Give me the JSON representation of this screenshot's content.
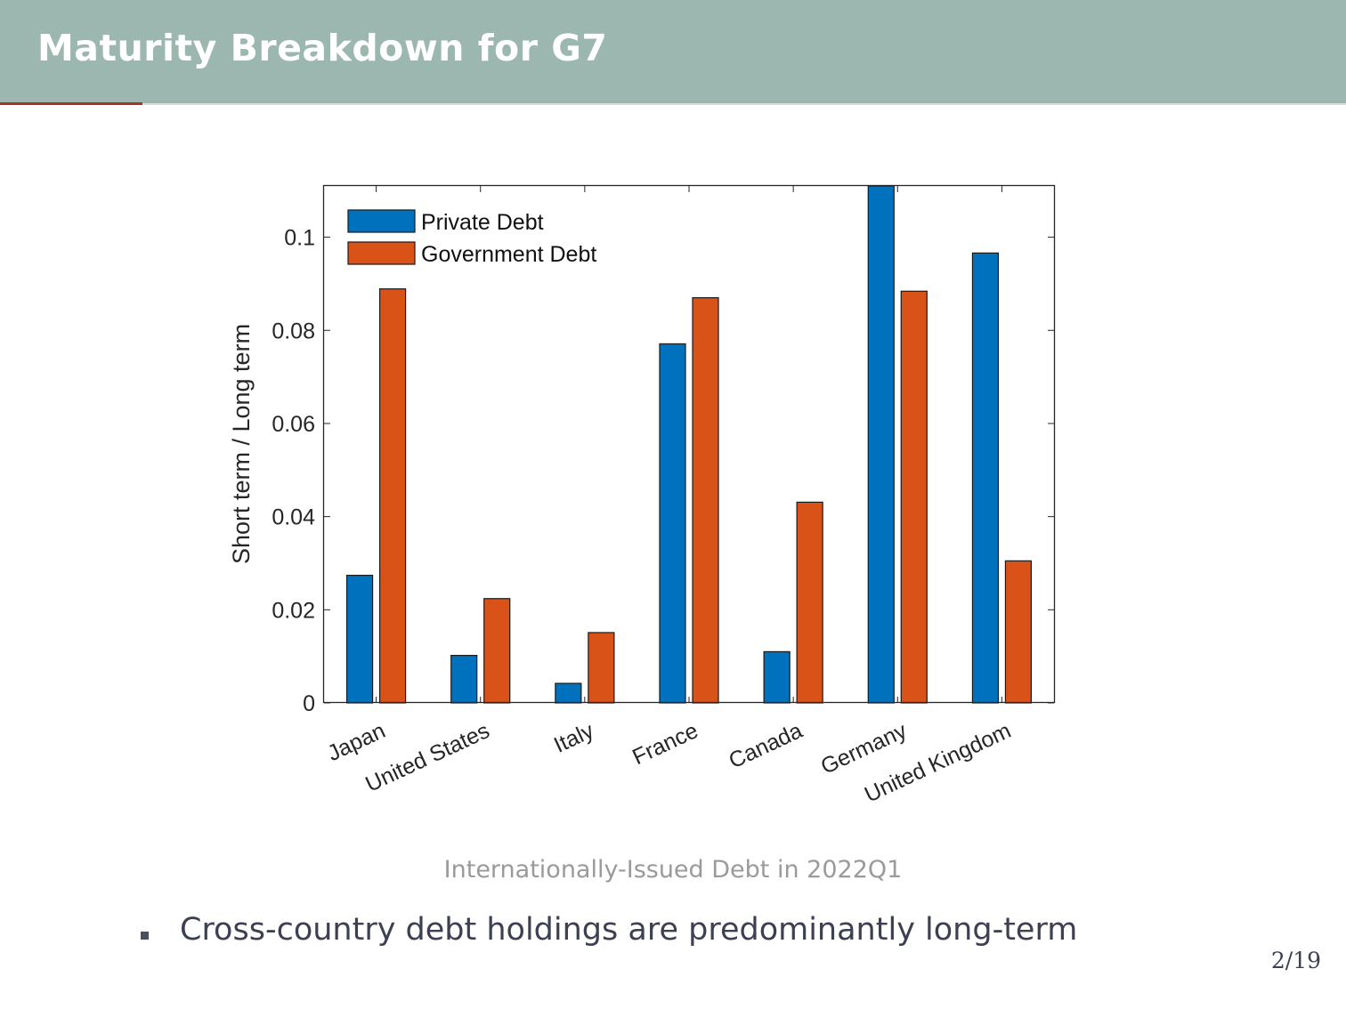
{
  "slide": {
    "title": "Maturity Breakdown for G7",
    "caption": "Internationally-Issued Debt in 2022Q1",
    "bullet": "Cross-country debt holdings are predominantly long-term",
    "page_number": "2/19"
  },
  "colors": {
    "header_bg": "#9bb7b0",
    "accent": "#a6322a",
    "private": "#0072bd",
    "government": "#d95319"
  },
  "chart_data": {
    "type": "bar",
    "title": "",
    "xlabel": "",
    "ylabel": "Short term / Long term",
    "ylim": [
      0,
      0.111
    ],
    "yticks": [
      0,
      0.02,
      0.04,
      0.06,
      0.08,
      0.1
    ],
    "ytick_labels": [
      "0",
      "0.02",
      "0.04",
      "0.06",
      "0.08",
      "0.1"
    ],
    "categories": [
      "Japan",
      "United States",
      "Italy",
      "France",
      "Canada",
      "Germany",
      "United Kingdom"
    ],
    "series": [
      {
        "name": "Private Debt",
        "color": "#0072bd",
        "values": [
          0.0274,
          0.0102,
          0.0042,
          0.0771,
          0.011,
          0.115,
          0.0966
        ]
      },
      {
        "name": "Government Debt",
        "color": "#d95319",
        "values": [
          0.0889,
          0.0224,
          0.0151,
          0.087,
          0.0431,
          0.0884,
          0.0305
        ]
      }
    ],
    "legend": {
      "position": "top-left",
      "entries": [
        "Private Debt",
        "Government Debt"
      ]
    },
    "grid": false
  }
}
